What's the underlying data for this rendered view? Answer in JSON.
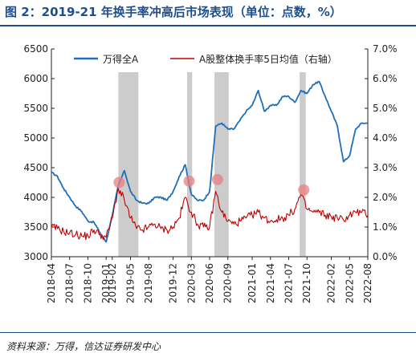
{
  "title": "图 2：2019-21 年换手率冲高后市场表现（单位：点数，%）",
  "source": "资料来源：万得，信达证券研发中心",
  "colors": {
    "accent": "#1f4e8c",
    "series1": "#1f6fb8",
    "series2": "#c00000",
    "shade": "#cccccc",
    "marker": "#e88080"
  },
  "chart_data": {
    "type": "line",
    "title": "",
    "x_range": [
      "2018-04",
      "2022-08"
    ],
    "x_ticks": [
      "2018-04",
      "2018-07",
      "2018-10",
      "2019-01",
      "2019-02",
      "2019-05",
      "2019-08",
      "2019-12",
      "2020-03",
      "2020-06",
      "2020-09",
      "2021-01",
      "2021-04",
      "2021-07",
      "2021-10",
      "2022-02",
      "2022-05",
      "2022-08"
    ],
    "y_left": {
      "min": 3000,
      "max": 6500,
      "ticks": [
        "3000",
        "3500",
        "4000",
        "4500",
        "5000",
        "5500",
        "6000",
        "6500"
      ]
    },
    "y_right": {
      "min": 0,
      "max": 7,
      "unit": "%",
      "ticks": [
        "0.0%",
        "1.0%",
        "2.0%",
        "3.0%",
        "4.0%",
        "5.0%",
        "6.0%",
        "7.0%"
      ]
    },
    "legend_position": "top",
    "series": [
      {
        "name": "万得全A",
        "axis": "left",
        "points": [
          [
            "2018-04",
            4420
          ],
          [
            "2018-05",
            4350
          ],
          [
            "2018-06",
            4150
          ],
          [
            "2018-07",
            4000
          ],
          [
            "2018-08",
            3850
          ],
          [
            "2018-09",
            3760
          ],
          [
            "2018-10",
            3600
          ],
          [
            "2018-11",
            3580
          ],
          [
            "2018-12",
            3400
          ],
          [
            "2019-01",
            3250
          ],
          [
            "2019-02",
            3700
          ],
          [
            "2019-03",
            4200
          ],
          [
            "2019-04",
            4450
          ],
          [
            "2019-05",
            4100
          ],
          [
            "2019-06",
            3950
          ],
          [
            "2019-07",
            3900
          ],
          [
            "2019-08",
            3900
          ],
          [
            "2019-09",
            4000
          ],
          [
            "2019-10",
            4000
          ],
          [
            "2019-11",
            3950
          ],
          [
            "2019-12",
            4100
          ],
          [
            "2020-01",
            4350
          ],
          [
            "2020-02",
            4550
          ],
          [
            "2020-03",
            4050
          ],
          [
            "2020-04",
            3950
          ],
          [
            "2020-05",
            3950
          ],
          [
            "2020-06",
            4100
          ],
          [
            "2020-07",
            5200
          ],
          [
            "2020-08",
            5250
          ],
          [
            "2020-09",
            5150
          ],
          [
            "2020-10",
            5150
          ],
          [
            "2020-11",
            5300
          ],
          [
            "2020-12",
            5450
          ],
          [
            "2021-01",
            5550
          ],
          [
            "2021-02",
            5800
          ],
          [
            "2021-03",
            5450
          ],
          [
            "2021-04",
            5550
          ],
          [
            "2021-05",
            5550
          ],
          [
            "2021-06",
            5700
          ],
          [
            "2021-07",
            5700
          ],
          [
            "2021-08",
            5600
          ],
          [
            "2021-09",
            5800
          ],
          [
            "2021-10",
            5750
          ],
          [
            "2021-11",
            5900
          ],
          [
            "2021-12",
            5950
          ],
          [
            "2022-01",
            5700
          ],
          [
            "2022-02",
            5450
          ],
          [
            "2022-03",
            5200
          ],
          [
            "2022-04",
            4600
          ],
          [
            "2022-05",
            4700
          ],
          [
            "2022-06",
            5150
          ],
          [
            "2022-07",
            5250
          ],
          [
            "2022-08",
            5250
          ]
        ]
      },
      {
        "name": "A股整体换手率5日均值（右轴）",
        "axis": "right",
        "points": [
          [
            "2018-04",
            1.0
          ],
          [
            "2018-05",
            0.95
          ],
          [
            "2018-06",
            0.85
          ],
          [
            "2018-07",
            0.8
          ],
          [
            "2018-08",
            0.75
          ],
          [
            "2018-09",
            0.7
          ],
          [
            "2018-10",
            0.7
          ],
          [
            "2018-11",
            0.9
          ],
          [
            "2018-12",
            0.75
          ],
          [
            "2019-01",
            0.65
          ],
          [
            "2019-02",
            1.3
          ],
          [
            "2019-03",
            2.3
          ],
          [
            "2019-04",
            1.9
          ],
          [
            "2019-05",
            1.3
          ],
          [
            "2019-06",
            0.95
          ],
          [
            "2019-07",
            0.9
          ],
          [
            "2019-08",
            1.0
          ],
          [
            "2019-09",
            1.1
          ],
          [
            "2019-10",
            0.95
          ],
          [
            "2019-11",
            0.9
          ],
          [
            "2019-12",
            1.0
          ],
          [
            "2020-01",
            1.3
          ],
          [
            "2020-02",
            2.0
          ],
          [
            "2020-03",
            1.5
          ],
          [
            "2020-04",
            1.1
          ],
          [
            "2020-05",
            1.0
          ],
          [
            "2020-06",
            1.0
          ],
          [
            "2020-07",
            2.2
          ],
          [
            "2020-08",
            1.5
          ],
          [
            "2020-09",
            1.2
          ],
          [
            "2020-10",
            1.1
          ],
          [
            "2020-11",
            1.2
          ],
          [
            "2020-12",
            1.3
          ],
          [
            "2021-01",
            1.4
          ],
          [
            "2021-02",
            1.5
          ],
          [
            "2021-03",
            1.3
          ],
          [
            "2021-04",
            1.2
          ],
          [
            "2021-05",
            1.25
          ],
          [
            "2021-06",
            1.3
          ],
          [
            "2021-07",
            1.4
          ],
          [
            "2021-08",
            1.6
          ],
          [
            "2021-09",
            2.1
          ],
          [
            "2021-10",
            1.6
          ],
          [
            "2021-11",
            1.5
          ],
          [
            "2021-12",
            1.5
          ],
          [
            "2022-01",
            1.4
          ],
          [
            "2022-02",
            1.35
          ],
          [
            "2022-03",
            1.3
          ],
          [
            "2022-04",
            1.25
          ],
          [
            "2022-05",
            1.4
          ],
          [
            "2022-06",
            1.5
          ],
          [
            "2022-07",
            1.5
          ],
          [
            "2022-08",
            1.4
          ]
        ]
      }
    ],
    "shaded_periods": [
      [
        "2019-03-01",
        "2019-06-10"
      ],
      [
        "2020-02-10",
        "2020-03-05"
      ],
      [
        "2020-06-25",
        "2020-09-05"
      ],
      [
        "2021-08-25",
        "2021-09-25"
      ]
    ],
    "peak_markers": [
      {
        "date": "2019-03-05",
        "value": 2.5
      },
      {
        "date": "2020-02-20",
        "value": 2.55
      },
      {
        "date": "2020-07-10",
        "value": 2.6
      },
      {
        "date": "2021-09-15",
        "value": 2.25
      }
    ]
  }
}
